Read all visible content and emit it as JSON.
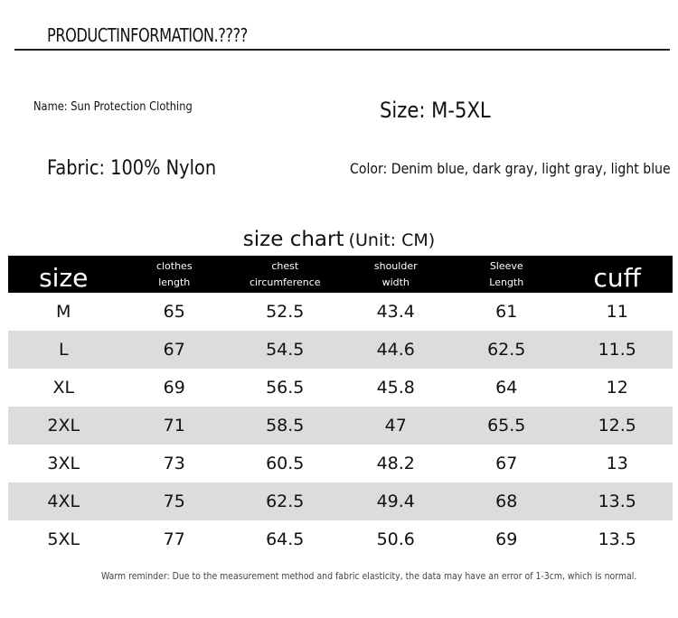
{
  "header": {
    "title": "PRODUCTINFORMATION.????"
  },
  "info": {
    "name": "Name: Sun Protection Clothing",
    "size": "Size: M-5XL",
    "fabric": "Fabric: 100% Nylon",
    "color": "Color: Denim blue, dark gray, light gray, light blue"
  },
  "size_chart": {
    "title": "size chart",
    "unit": "(Unit: CM)"
  },
  "table": {
    "headers": [
      [
        "size"
      ],
      [
        "clothes",
        "length"
      ],
      [
        "chest",
        "circumference"
      ],
      [
        "shoulder",
        "width"
      ],
      [
        "Sleeve",
        "Length"
      ],
      [
        "cuff"
      ]
    ],
    "rows": [
      [
        "M",
        65,
        52.5,
        43.4,
        61,
        11
      ],
      [
        "L",
        67,
        54.5,
        44.6,
        62.5,
        11.5
      ],
      [
        "XL",
        69,
        56.5,
        45.8,
        64,
        12
      ],
      [
        "2XL",
        71,
        58.5,
        47,
        65.5,
        12.5
      ],
      [
        "3XL",
        73,
        60.5,
        48.2,
        67,
        13
      ],
      [
        "4XL",
        75,
        62.5,
        49.4,
        68,
        13.5
      ],
      [
        "5XL",
        77,
        64.5,
        50.6,
        69,
        13.5
      ]
    ]
  },
  "footer": {
    "note": "Warm reminder: Due to the measurement method and fabric elasticity, the data may have an error of 1-3cm, which is normal."
  }
}
